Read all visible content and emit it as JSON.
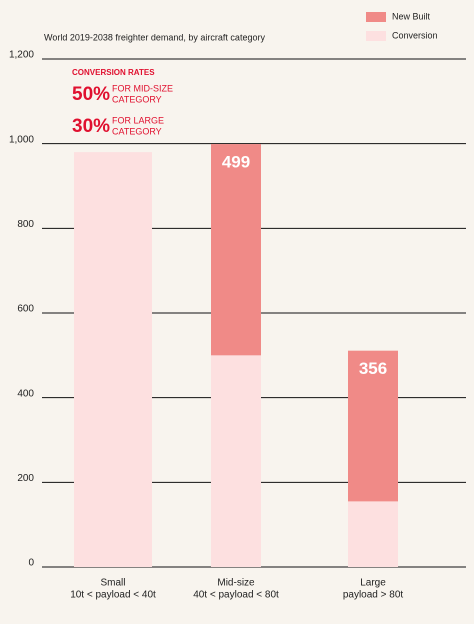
{
  "chart_data": {
    "type": "stacked-bar",
    "title": "World 2019-2038 freighter demand, by aircraft category",
    "categories": [
      [
        "Small",
        "10t < payload < 40t"
      ],
      [
        "Mid-size",
        "40t < payload < 80t"
      ],
      [
        "Large",
        "payload > 80t"
      ]
    ],
    "series": [
      {
        "name": "Conversion",
        "color": "#fde0e0",
        "values": [
          980,
          500,
          155
        ]
      },
      {
        "name": "New Built",
        "color": "#f08a87",
        "values": [
          null,
          499,
          356
        ]
      }
    ],
    "data_labels": [
      false,
      true
    ],
    "ylim": [
      0,
      1200
    ],
    "yticks": [
      0,
      200,
      400,
      600,
      800,
      {
        "value": 1000,
        "label": "1,000"
      },
      {
        "value": 1200,
        "label": "1,200"
      }
    ],
    "grid": true,
    "legend": "top-right",
    "annotation": {
      "title": "CONVERSION RATES",
      "color": "#e0102f",
      "items": [
        {
          "rate": "50%",
          "text": [
            "FOR MID-SIZE",
            "CATEGORY"
          ]
        },
        {
          "rate": "30%",
          "text": [
            "FOR LARGE",
            "CATEGORY"
          ]
        }
      ]
    }
  }
}
